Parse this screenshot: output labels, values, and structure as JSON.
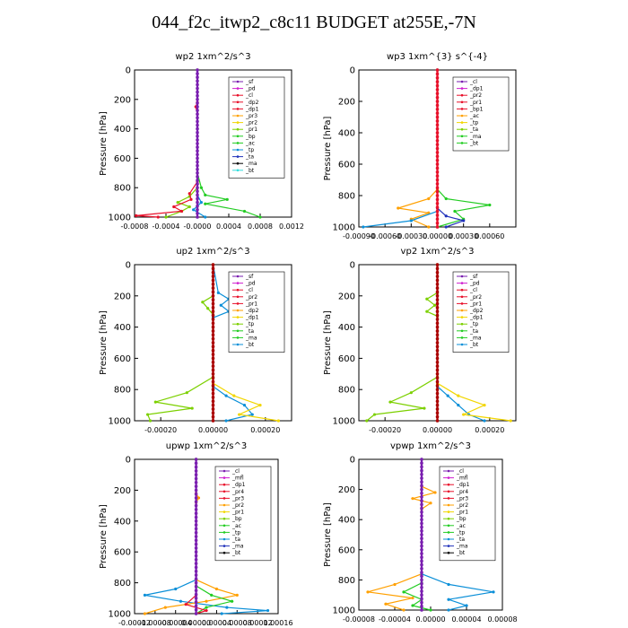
{
  "title": "044_f2c_itwp2_c8c11  BUDGET at255E,-7N",
  "colors": {
    "black": "#000000",
    "purple": "#7a1fb0",
    "red": "#e8102a",
    "orange": "#ffa000",
    "yellow": "#f2d600",
    "green": "#22cc22",
    "lime": "#7cd000",
    "blue": "#0b8fd8",
    "navy": "#2233bb",
    "cyan": "#33dddd",
    "magenta": "#d020d0",
    "darkred": "#aa0000"
  },
  "chart_data": [
    {
      "type": "line",
      "title": "wp2   1xm^2/s^3",
      "ylabel": "Pressure  [hPa]",
      "ylim": [
        1000,
        0
      ],
      "yticks": [
        "0",
        "200",
        "400",
        "600",
        "800",
        "1000"
      ],
      "xlim": [
        -0.0008,
        0.0012
      ],
      "xticks": [
        "-0.0008",
        "-0.0004",
        "-0.0000",
        "0.0004",
        "0.0008",
        "0.0012"
      ],
      "legend_position": "upper-right",
      "legend": [
        "_sf",
        "_pd",
        "_cl",
        "_dp2",
        "_dp1",
        "_pr3",
        "_pr2",
        "_pr1",
        "_bp",
        "_ac",
        "_tp",
        "_ta",
        "_ma",
        "_bt"
      ],
      "series": [
        {
          "name": "_bp",
          "color": "green",
          "points": [
            [
              0,
              0
            ],
            [
              0,
              700
            ],
            [
              5e-05,
              800
            ],
            [
              0.0001,
              850
            ],
            [
              0.00038,
              880
            ],
            [
              0.0001,
              910
            ],
            [
              0.0006,
              960
            ],
            [
              0.0008,
              1000
            ]
          ]
        },
        {
          "name": "_pr1",
          "color": "lime",
          "points": [
            [
              0,
              0
            ],
            [
              0,
              800
            ],
            [
              -0.0001,
              860
            ],
            [
              -0.00025,
              900
            ],
            [
              -0.0001,
              930
            ],
            [
              -0.0002,
              960
            ],
            [
              -0.0004,
              1000
            ]
          ]
        },
        {
          "name": "_ac",
          "color": "blue",
          "points": [
            [
              0,
              0
            ],
            [
              0,
              850
            ],
            [
              5e-05,
              900
            ],
            [
              -5e-05,
              950
            ],
            [
              0.0001,
              1000
            ]
          ]
        },
        {
          "name": "_dp1",
          "color": "red",
          "points": [
            [
              0,
              0
            ],
            [
              0,
              220
            ],
            [
              -2e-05,
              250
            ],
            [
              0,
              300
            ],
            [
              0,
              760
            ],
            [
              -0.0001,
              840
            ],
            [
              -8e-05,
              880
            ],
            [
              -0.0003,
              930
            ],
            [
              -0.0002,
              960
            ],
            [
              -0.00078,
              990
            ],
            [
              -0.0005,
              1000
            ]
          ]
        },
        {
          "name": "_pd",
          "color": "purple",
          "points": [
            [
              0,
              0
            ],
            [
              0,
              1000
            ]
          ]
        }
      ]
    },
    {
      "type": "line",
      "title": "wp3   1xm^{3} s^{-4}",
      "ylabel": "Pressure  [hPa]",
      "ylim": [
        1000,
        0
      ],
      "yticks": [
        "0",
        "200",
        "400",
        "600",
        "800",
        "1000"
      ],
      "xlim": [
        -0.0009,
        0.0009
      ],
      "xticks": [
        "-0.00090",
        "-0.00060",
        "-0.00030",
        "0.00000",
        "0.00030",
        "0.00060"
      ],
      "legend_position": "upper-right",
      "legend": [
        "_cl",
        "_dp1",
        "_pr2",
        "_pr1",
        "_bp1",
        "_ac",
        "_tp",
        "_ta",
        "_ma",
        "_bt"
      ],
      "series": [
        {
          "name": "_bp1",
          "color": "green",
          "points": [
            [
              0,
              0
            ],
            [
              0,
              760
            ],
            [
              0.0001,
              820
            ],
            [
              0.0006,
              860
            ],
            [
              0.0002,
              900
            ],
            [
              0.0003,
              950
            ],
            [
              0,
              1000
            ]
          ]
        },
        {
          "name": "_pr2",
          "color": "orange",
          "points": [
            [
              0,
              0
            ],
            [
              0,
              760
            ],
            [
              -0.0001,
              820
            ],
            [
              -0.00045,
              880
            ],
            [
              -0.0001,
              910
            ],
            [
              -0.0003,
              950
            ],
            [
              -0.0001,
              1000
            ]
          ]
        },
        {
          "name": "_tp",
          "color": "navy",
          "points": [
            [
              0,
              0
            ],
            [
              0,
              880
            ],
            [
              0.0001,
              930
            ],
            [
              0.0003,
              960
            ],
            [
              0.0001,
              1000
            ]
          ]
        },
        {
          "name": "_ac",
          "color": "blue",
          "points": [
            [
              0,
              0
            ],
            [
              0,
              900
            ],
            [
              -0.0003,
              960
            ],
            [
              -0.00085,
              1000
            ]
          ]
        },
        {
          "name": "_dp1",
          "color": "red",
          "points": [
            [
              0,
              0
            ],
            [
              0,
              1000
            ]
          ]
        }
      ]
    },
    {
      "type": "line",
      "title": "up2   1xm^2/s^3",
      "ylabel": "Pressure  [hPa]",
      "ylim": [
        1000,
        0
      ],
      "yticks": [
        "0",
        "200",
        "400",
        "600",
        "800",
        "1000"
      ],
      "xlim": [
        -0.0003,
        0.0003
      ],
      "xticks": [
        "-0.00020",
        "0.00000",
        "0.00020"
      ],
      "legend_position": "upper-right",
      "legend": [
        "_sf",
        "_pd",
        "_cl",
        "_pr2",
        "_pr1",
        "_dp2",
        "_dp1",
        "_tp",
        "_ta",
        "_ma",
        "_bt"
      ],
      "series": [
        {
          "name": "_dp2",
          "color": "blue",
          "points": [
            [
              0,
              0
            ],
            [
              2e-05,
              180
            ],
            [
              6e-05,
              220
            ],
            [
              3e-05,
              260
            ],
            [
              6e-05,
              300
            ],
            [
              0,
              340
            ],
            [
              0,
              780
            ],
            [
              5e-05,
              840
            ],
            [
              0.00012,
              900
            ],
            [
              0.00015,
              960
            ],
            [
              5e-05,
              1000
            ]
          ]
        },
        {
          "name": "_pr1",
          "color": "lime",
          "points": [
            [
              0,
              0
            ],
            [
              0,
              200
            ],
            [
              -4e-05,
              240
            ],
            [
              -2e-05,
              280
            ],
            [
              0,
              320
            ],
            [
              0,
              720
            ],
            [
              -0.0001,
              820
            ],
            [
              -0.00022,
              880
            ],
            [
              -8e-05,
              920
            ],
            [
              -0.00025,
              960
            ],
            [
              -0.00024,
              1000
            ]
          ]
        },
        {
          "name": "_pr2",
          "color": "yellow",
          "points": [
            [
              0,
              0
            ],
            [
              0,
              760
            ],
            [
              8e-05,
              840
            ],
            [
              0.00018,
              900
            ],
            [
              0.0001,
              960
            ],
            [
              0.00025,
              1000
            ]
          ]
        },
        {
          "name": "_dp1",
          "color": "darkred",
          "points": [
            [
              0,
              0
            ],
            [
              0,
              1000
            ]
          ]
        }
      ]
    },
    {
      "type": "line",
      "title": "vp2   1xm^2/s^3",
      "ylabel": "Pressure  [hPa]",
      "ylim": [
        1000,
        0
      ],
      "yticks": [
        "0",
        "200",
        "400",
        "600",
        "800",
        "1000"
      ],
      "xlim": [
        -0.0003,
        0.0003
      ],
      "xticks": [
        "-0.00020",
        "0.00000",
        "0.00020"
      ],
      "legend_position": "upper-right",
      "legend": [
        "_sf",
        "_pd",
        "_cl",
        "_pr2",
        "_pr1",
        "_dp2",
        "_dp1",
        "_tp",
        "_ta",
        "_ma",
        "_bt"
      ],
      "series": [
        {
          "name": "_pr1",
          "color": "lime",
          "points": [
            [
              0,
              0
            ],
            [
              0,
              180
            ],
            [
              -4e-05,
              220
            ],
            [
              -1e-05,
              260
            ],
            [
              -4e-05,
              300
            ],
            [
              0,
              330
            ],
            [
              0,
              720
            ],
            [
              -0.0001,
              820
            ],
            [
              -0.00018,
              880
            ],
            [
              -5e-05,
              920
            ],
            [
              -0.00024,
              960
            ],
            [
              -0.00027,
              1000
            ]
          ]
        },
        {
          "name": "_dp2",
          "color": "blue",
          "points": [
            [
              0,
              0
            ],
            [
              0,
              780
            ],
            [
              4e-05,
              840
            ],
            [
              8e-05,
              900
            ],
            [
              0.00012,
              960
            ],
            [
              0.00018,
              1000
            ]
          ]
        },
        {
          "name": "_pr2",
          "color": "yellow",
          "points": [
            [
              0,
              0
            ],
            [
              0,
              760
            ],
            [
              8e-05,
              840
            ],
            [
              0.00018,
              900
            ],
            [
              0.0001,
              960
            ],
            [
              0.00028,
              1000
            ]
          ]
        },
        {
          "name": "_dp1",
          "color": "darkred",
          "points": [
            [
              0,
              0
            ],
            [
              0,
              1000
            ]
          ]
        }
      ]
    },
    {
      "type": "line",
      "title": "upwp   1xm^2/s^3",
      "ylabel": "Pressure  [hPa]",
      "ylim": [
        1000,
        0
      ],
      "yticks": [
        "0",
        "200",
        "400",
        "600",
        "800",
        "1000"
      ],
      "xlim": [
        -0.00012,
        0.00016
      ],
      "xticks": [
        "-0.00012",
        "-0.00008",
        "-0.00004",
        "0.00000",
        "0.00004",
        "0.00008",
        "0.00012",
        "0.00016"
      ],
      "legend_position": "upper-right",
      "legend": [
        "_cl",
        "_mfl",
        "_dp1",
        "_pr4",
        "_pr3",
        "_pr2",
        "_pr1",
        "_bp",
        "_ac",
        "_tp",
        "_ta",
        "_ma",
        "_bt"
      ],
      "series": [
        {
          "name": "_bp",
          "color": "blue",
          "points": [
            [
              0,
              0
            ],
            [
              0,
              780
            ],
            [
              -4e-05,
              840
            ],
            [
              -0.0001,
              880
            ],
            [
              -3e-05,
              920
            ],
            [
              6e-05,
              960
            ],
            [
              0.00014,
              980
            ],
            [
              5e-05,
              1000
            ]
          ]
        },
        {
          "name": "_pr2",
          "color": "orange",
          "points": [
            [
              0,
              0
            ],
            [
              0,
              220
            ],
            [
              5e-06,
              250
            ],
            [
              0,
              280
            ],
            [
              0,
              780
            ],
            [
              4e-05,
              840
            ],
            [
              8e-05,
              880
            ],
            [
              2e-05,
              920
            ],
            [
              -6e-05,
              960
            ],
            [
              -0.0001,
              1000
            ]
          ]
        },
        {
          "name": "_ac",
          "color": "green",
          "points": [
            [
              0,
              0
            ],
            [
              0,
              820
            ],
            [
              3e-05,
              880
            ],
            [
              7e-05,
              920
            ],
            [
              2e-05,
              960
            ],
            [
              0,
              1000
            ]
          ]
        },
        {
          "name": "_dp1",
          "color": "red",
          "points": [
            [
              0,
              0
            ],
            [
              0,
              880
            ],
            [
              -2e-05,
              940
            ],
            [
              2e-05,
              980
            ],
            [
              0,
              1000
            ]
          ]
        },
        {
          "name": "_mfl",
          "color": "purple",
          "points": [
            [
              0,
              0
            ],
            [
              0,
              1000
            ]
          ]
        }
      ]
    },
    {
      "type": "line",
      "title": "vpwp   1xm^2/s^3",
      "ylabel": "Pressure  [hPa]",
      "ylim": [
        1000,
        0
      ],
      "yticks": [
        "0",
        "200",
        "400",
        "600",
        "800",
        "1000"
      ],
      "xlim": [
        -8e-05,
        8e-05
      ],
      "xticks": [
        "-0.00008",
        "-0.00004",
        "0.00000",
        "0.00004",
        "0.00008"
      ],
      "legend_position": "upper-right",
      "legend": [
        "_cl",
        "_mfl",
        "_dp1",
        "_pr4",
        "_pr3",
        "_pr2",
        "_pr1",
        "_bp",
        "_ac",
        "_tp",
        "_ta",
        "_ma",
        "_bt"
      ],
      "series": [
        {
          "name": "_pr2",
          "color": "orange",
          "points": [
            [
              -1e-05,
              0
            ],
            [
              -1e-05,
              180
            ],
            [
              5e-06,
              220
            ],
            [
              -2e-05,
              260
            ],
            [
              0,
              290
            ],
            [
              -1e-05,
              330
            ],
            [
              -1e-05,
              760
            ],
            [
              -4e-05,
              830
            ],
            [
              -7e-05,
              880
            ],
            [
              -2e-05,
              920
            ],
            [
              -5e-05,
              960
            ],
            [
              -3e-05,
              1000
            ]
          ]
        },
        {
          "name": "_bp",
          "color": "blue",
          "points": [
            [
              -1e-05,
              0
            ],
            [
              -1e-05,
              760
            ],
            [
              2e-05,
              830
            ],
            [
              7e-05,
              880
            ],
            [
              2e-05,
              930
            ],
            [
              4e-05,
              970
            ],
            [
              2e-05,
              1000
            ]
          ]
        },
        {
          "name": "_ac",
          "color": "green",
          "points": [
            [
              -1e-05,
              0
            ],
            [
              -1e-05,
              820
            ],
            [
              -3e-05,
              880
            ],
            [
              -1e-05,
              930
            ],
            [
              -2e-05,
              970
            ],
            [
              0,
              1000
            ]
          ]
        },
        {
          "name": "_mfl",
          "color": "purple",
          "points": [
            [
              -1e-05,
              0
            ],
            [
              -1e-05,
              1000
            ]
          ]
        }
      ]
    }
  ]
}
